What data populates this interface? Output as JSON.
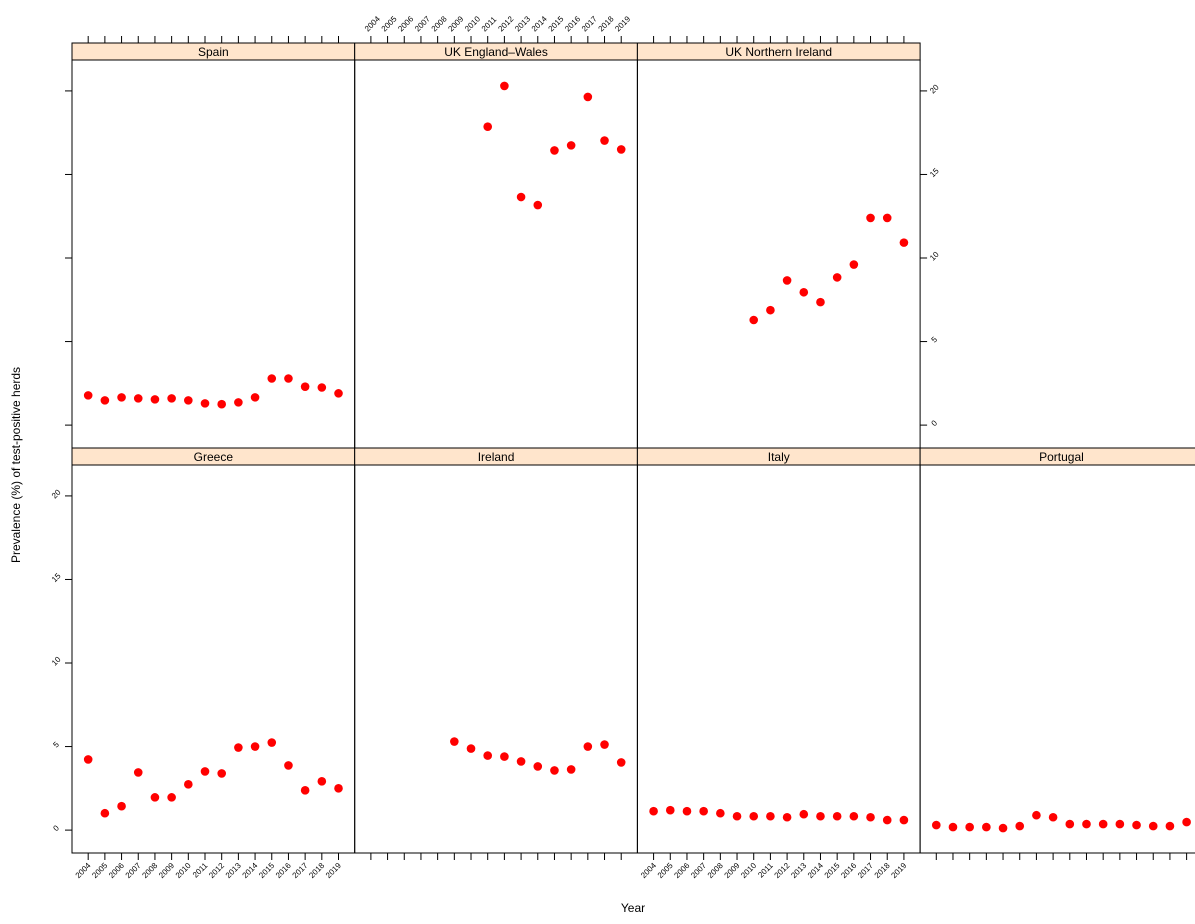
{
  "chart_data": {
    "type": "scatter",
    "xlabel": "Year",
    "ylabel": "Prevalence (%) of test-positive herds",
    "color": "#ff0000",
    "strip_color": "#ffe5cc",
    "xlim": [
      2003.03,
      2019.97
    ],
    "ylim": [
      -1.37,
      21.85
    ],
    "xticks": [
      2004,
      2005,
      2006,
      2007,
      2008,
      2009,
      2010,
      2011,
      2012,
      2013,
      2014,
      2015,
      2016,
      2017,
      2018,
      2019
    ],
    "yticks": [
      0,
      5,
      10,
      15,
      20
    ],
    "panels": [
      {
        "title": "Greece",
        "x": [
          2004,
          2005,
          2006,
          2007,
          2008,
          2009,
          2010,
          2011,
          2012,
          2013,
          2014,
          2015,
          2016,
          2017,
          2018,
          2019
        ],
        "values": [
          4.23,
          1.01,
          1.43,
          3.45,
          1.96,
          1.96,
          2.74,
          3.51,
          3.39,
          4.94,
          5.0,
          5.24,
          3.87,
          2.38,
          2.92,
          2.5
        ]
      },
      {
        "title": "Ireland",
        "x": [
          2009,
          2010,
          2011,
          2012,
          2013,
          2014,
          2015,
          2016,
          2017,
          2018,
          2019
        ],
        "values": [
          5.3,
          4.88,
          4.46,
          4.4,
          4.11,
          3.81,
          3.57,
          3.63,
          5.0,
          5.12,
          4.05
        ]
      },
      {
        "title": "Italy",
        "x": [
          2004,
          2005,
          2006,
          2007,
          2008,
          2009,
          2010,
          2011,
          2012,
          2013,
          2014,
          2015,
          2016,
          2017,
          2018,
          2019
        ],
        "values": [
          1.13,
          1.19,
          1.13,
          1.13,
          1.01,
          0.83,
          0.83,
          0.83,
          0.77,
          0.95,
          0.83,
          0.83,
          0.83,
          0.77,
          0.6,
          0.6
        ]
      },
      {
        "title": "Portugal",
        "x": [
          2004,
          2005,
          2006,
          2007,
          2008,
          2009,
          2010,
          2011,
          2012,
          2013,
          2014,
          2015,
          2016,
          2017,
          2018,
          2019
        ],
        "values": [
          0.3,
          0.18,
          0.18,
          0.18,
          0.12,
          0.24,
          0.89,
          0.77,
          0.36,
          0.36,
          0.36,
          0.36,
          0.3,
          0.24,
          0.24,
          0.48
        ]
      },
      {
        "title": "Spain",
        "x": [
          2004,
          2005,
          2006,
          2007,
          2008,
          2009,
          2010,
          2011,
          2012,
          2013,
          2014,
          2015,
          2016,
          2017,
          2018,
          2019
        ],
        "values": [
          1.78,
          1.48,
          1.66,
          1.6,
          1.54,
          1.6,
          1.48,
          1.3,
          1.25,
          1.36,
          1.66,
          2.79,
          2.79,
          2.3,
          2.25,
          1.9
        ]
      },
      {
        "title": "UK England–Wales",
        "x": [
          2011,
          2012,
          2013,
          2014,
          2015,
          2016,
          2017,
          2018,
          2019
        ],
        "values": [
          17.86,
          20.3,
          13.65,
          13.17,
          16.44,
          16.74,
          19.64,
          17.03,
          16.5
        ]
      },
      {
        "title": "UK Northern Ireland",
        "x": [
          2010,
          2011,
          2012,
          2013,
          2014,
          2015,
          2016,
          2017,
          2018,
          2019
        ],
        "values": [
          6.29,
          6.88,
          8.66,
          7.95,
          7.36,
          8.84,
          9.61,
          12.4,
          12.4,
          10.92
        ]
      }
    ]
  }
}
